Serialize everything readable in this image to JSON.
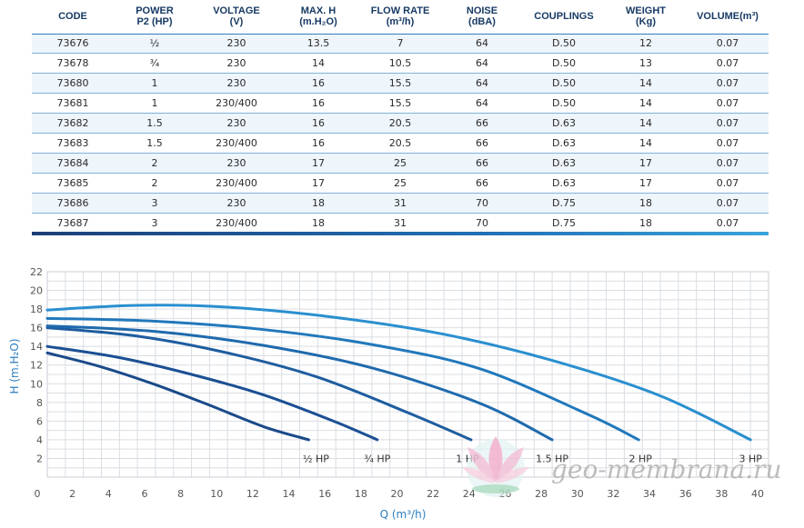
{
  "table": {
    "headers": [
      "CODE",
      "POWER\nP2 (HP)",
      "VOLTAGE\n(V)",
      "MAX. H\n(m.H₂O)",
      "FLOW RATE\n(m³/h)",
      "NOISE\n(dBA)",
      "COUPLINGS",
      "WEIGHT\n(Kg)",
      "VOLUME(m³)"
    ],
    "rows": [
      [
        "73676",
        "½",
        "230",
        "13.5",
        "7",
        "64",
        "D.50",
        "12",
        "0.07"
      ],
      [
        "73678",
        "¾",
        "230",
        "14",
        "10.5",
        "64",
        "D.50",
        "13",
        "0.07"
      ],
      [
        "73680",
        "1",
        "230",
        "16",
        "15.5",
        "64",
        "D.50",
        "14",
        "0.07"
      ],
      [
        "73681",
        "1",
        "230/400",
        "16",
        "15.5",
        "64",
        "D.50",
        "14",
        "0.07"
      ],
      [
        "73682",
        "1.5",
        "230",
        "16",
        "20.5",
        "66",
        "D.63",
        "14",
        "0.07"
      ],
      [
        "73683",
        "1.5",
        "230/400",
        "16",
        "20.5",
        "66",
        "D.63",
        "14",
        "0.07"
      ],
      [
        "73684",
        "2",
        "230",
        "17",
        "25",
        "66",
        "D.63",
        "17",
        "0.07"
      ],
      [
        "73685",
        "2",
        "230/400",
        "17",
        "25",
        "66",
        "D.63",
        "17",
        "0.07"
      ],
      [
        "73686",
        "3",
        "230",
        "18",
        "31",
        "70",
        "D.75",
        "18",
        "0.07"
      ],
      [
        "73687",
        "3",
        "230/400",
        "18",
        "31",
        "70",
        "D.75",
        "18",
        "0.07"
      ]
    ]
  },
  "chart_data": {
    "type": "line",
    "xlabel": "Q (m³/h)",
    "ylabel": "H (m.H₂O)",
    "xlim": [
      0,
      40
    ],
    "ylim": [
      0,
      22
    ],
    "xticks": [
      0,
      2,
      4,
      6,
      8,
      10,
      12,
      14,
      16,
      18,
      20,
      22,
      24,
      26,
      28,
      30,
      32,
      34,
      36,
      38,
      40
    ],
    "yticks": [
      2,
      4,
      6,
      8,
      10,
      12,
      14,
      16,
      18,
      20,
      22
    ],
    "grid": true,
    "series": [
      {
        "name": "½ HP",
        "color": "#1b4a8a",
        "x": [
          0,
          3,
          6,
          9,
          12,
          14.5
        ],
        "y": [
          13.3,
          11.8,
          9.9,
          7.7,
          5.4,
          4
        ]
      },
      {
        "name": "¾ HP",
        "color": "#1b4f93",
        "x": [
          0,
          4,
          8,
          12,
          16,
          18.3
        ],
        "y": [
          14,
          12.8,
          11,
          8.8,
          5.9,
          4
        ]
      },
      {
        "name": "1 HP",
        "color": "#1e5d9f",
        "x": [
          0,
          5,
          10,
          15,
          20,
          23.5
        ],
        "y": [
          16,
          15.1,
          13.3,
          10.7,
          6.9,
          4
        ]
      },
      {
        "name": "1.5 HP",
        "color": "#1f6aad",
        "x": [
          0,
          6,
          12,
          18,
          24,
          28
        ],
        "y": [
          16.2,
          15.6,
          14.1,
          11.7,
          7.9,
          4
        ]
      },
      {
        "name": "2 HP",
        "color": "#2178bb",
        "x": [
          0,
          6,
          12,
          18,
          24,
          30,
          32.8
        ],
        "y": [
          17,
          16.7,
          15.8,
          14.2,
          11.6,
          6.7,
          4
        ]
      },
      {
        "name": "3 HP",
        "color": "#2a8fcf",
        "x": [
          0,
          5,
          10,
          16,
          22,
          28,
          34,
          39
        ],
        "y": [
          17.9,
          18.4,
          18.2,
          17.1,
          15.3,
          12.5,
          8.7,
          4
        ]
      }
    ],
    "labels": [
      {
        "text": "½ HP",
        "x": 14.9,
        "y": 1.2
      },
      {
        "text": "¾ HP",
        "x": 18.3,
        "y": 1.2
      },
      {
        "text": "1 HP",
        "x": 23.3,
        "y": 1.2
      },
      {
        "text": "1.5 HP",
        "x": 28.0,
        "y": 1.2
      },
      {
        "text": "2 HP",
        "x": 32.9,
        "y": 1.2
      },
      {
        "text": "3 HP",
        "x": 39.0,
        "y": 1.2
      }
    ]
  },
  "watermark": {
    "text": "geo-membrana.ru",
    "icon": "lotus-icon"
  }
}
